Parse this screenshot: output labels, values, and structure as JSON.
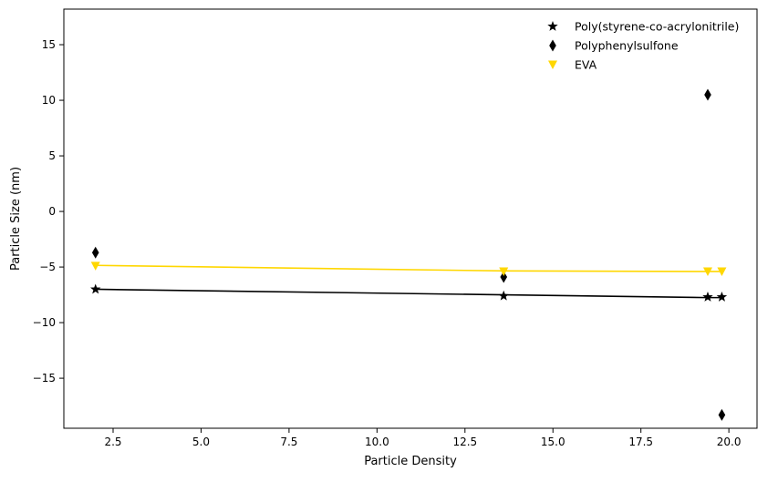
{
  "chart_data": {
    "type": "scatter",
    "title": "",
    "xlabel": "Particle Density",
    "ylabel": "Particle Size (nm)",
    "xlim": [
      1.1,
      20.8
    ],
    "ylim": [
      -19.5,
      18.2
    ],
    "xticks": [
      2.5,
      5.0,
      7.5,
      10.0,
      12.5,
      15.0,
      17.5,
      20.0
    ],
    "xtick_labels": [
      "2.5",
      "5.0",
      "7.5",
      "10.0",
      "12.5",
      "15.0",
      "17.5",
      "20.0"
    ],
    "yticks": [
      -15,
      -10,
      -5,
      0,
      5,
      10,
      15
    ],
    "ytick_labels": [
      "−15",
      "−10",
      "−5",
      "0",
      "5",
      "10",
      "15"
    ],
    "grid": false,
    "legend_position": "top-right",
    "series": [
      {
        "name": "Poly(styrene-co-acrylonitrile)",
        "marker": "star",
        "color": "#000000",
        "x": [
          2.0,
          13.6,
          19.4,
          19.8
        ],
        "y": [
          -7.0,
          -7.6,
          -7.7,
          -7.7
        ],
        "line": {
          "x": [
            2.0,
            13.6,
            19.4,
            19.8
          ],
          "y": [
            -7.0,
            -7.5,
            -7.75,
            -7.75
          ]
        }
      },
      {
        "name": "Polyphenylsulfone",
        "marker": "thin_diamond",
        "color": "#000000",
        "x": [
          2.0,
          13.6,
          19.4,
          19.8
        ],
        "y": [
          -3.7,
          -5.9,
          10.5,
          -18.3
        ]
      },
      {
        "name": "EVA",
        "marker": "triangle_down",
        "color": "#FFD700",
        "x": [
          2.0,
          13.6,
          19.4,
          19.8
        ],
        "y": [
          -4.9,
          -5.4,
          -5.4,
          -5.4
        ],
        "line": {
          "x": [
            2.0,
            13.6,
            19.4,
            19.8
          ],
          "y": [
            -4.85,
            -5.35,
            -5.4,
            -5.4
          ]
        }
      }
    ]
  }
}
